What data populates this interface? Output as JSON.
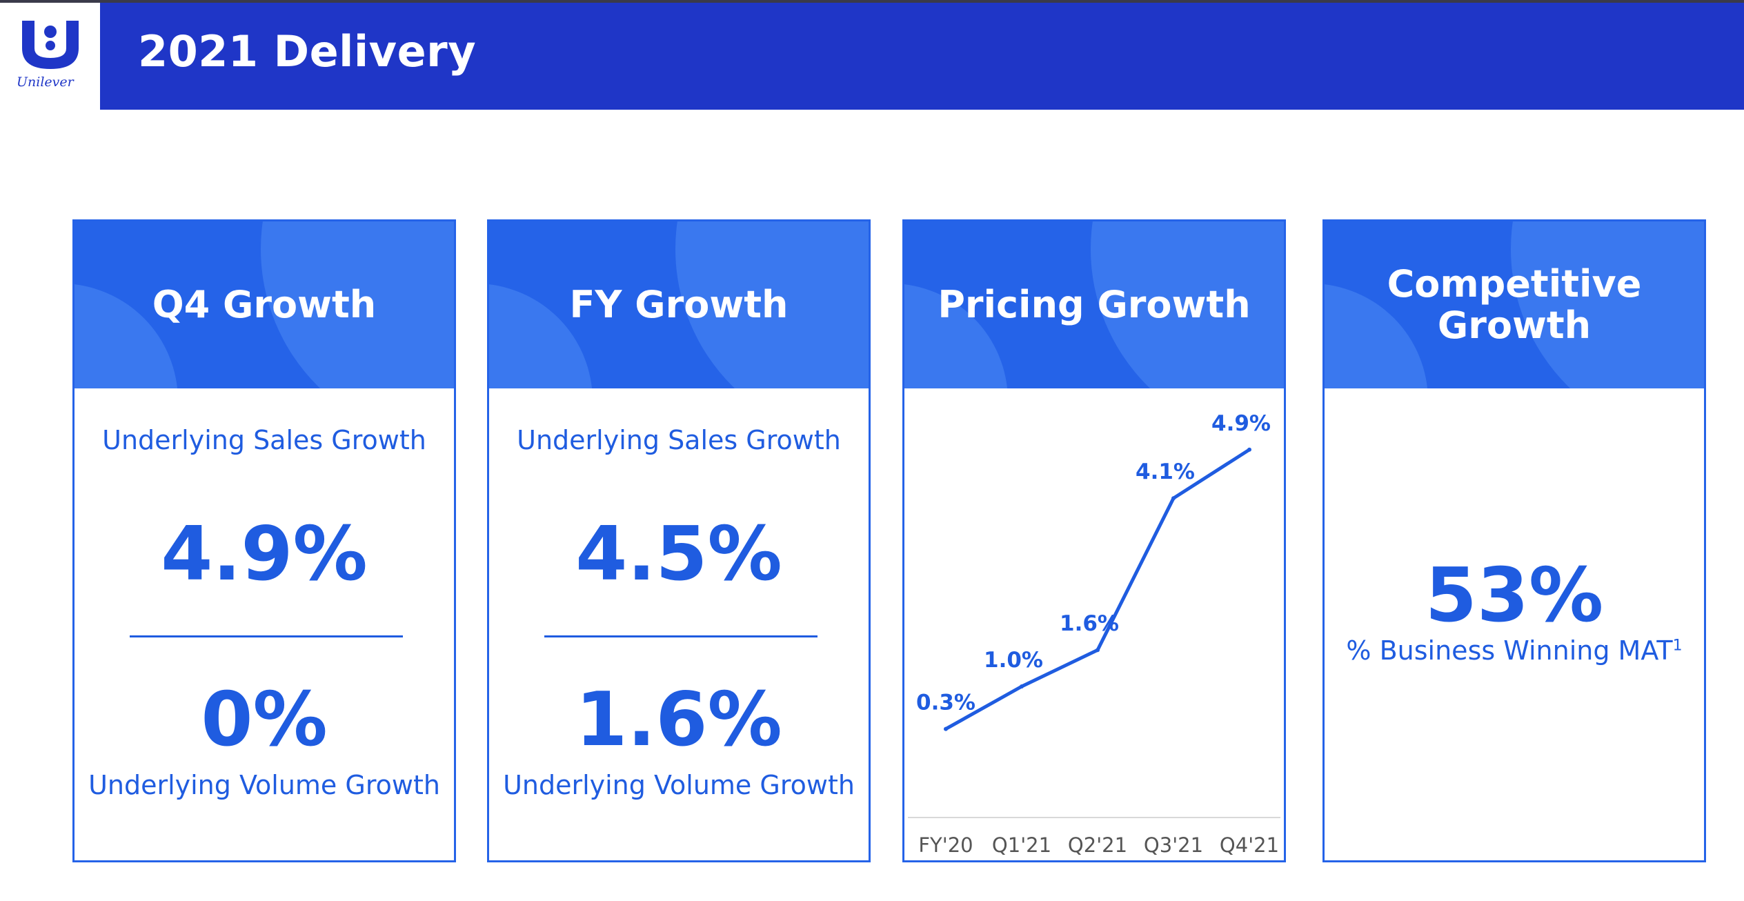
{
  "header": {
    "title": "2021 Delivery",
    "logo_text": "Unilever",
    "brand_color": "#1f36c7"
  },
  "cards": [
    {
      "title": "Q4 Growth",
      "top_label": "Underlying Sales Growth",
      "top_value": "4.9%",
      "bottom_value": "0%",
      "bottom_label": "Underlying Volume Growth"
    },
    {
      "title": "FY Growth",
      "top_label": "Underlying Sales Growth",
      "top_value": "4.5%",
      "bottom_value": "1.6%",
      "bottom_label": "Underlying Volume Growth"
    },
    {
      "title": "Pricing Growth"
    },
    {
      "title": "Competitive Growth",
      "value": "53%",
      "label": "% Business Winning MAT",
      "footnote": "1"
    }
  ],
  "chart_data": {
    "type": "line",
    "categories": [
      "FY'20",
      "Q1'21",
      "Q2'21",
      "Q3'21",
      "Q4'21"
    ],
    "values": [
      0.3,
      1.0,
      1.6,
      4.1,
      4.9
    ],
    "data_labels": [
      "0.3%",
      "1.0%",
      "1.6%",
      "4.1%",
      "4.9%"
    ],
    "title": "",
    "xlabel": "",
    "ylabel": "",
    "ylim": [
      0,
      5
    ],
    "grid": false,
    "line_color": "#1f5ce0"
  },
  "colors": {
    "card_accent": "#2563e8",
    "text_accent": "#1f5ce0"
  }
}
